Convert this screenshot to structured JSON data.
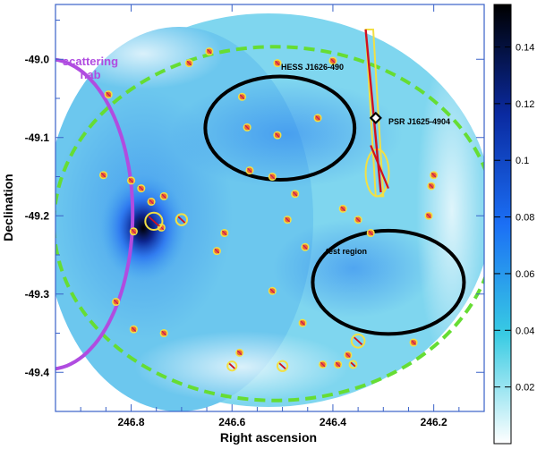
{
  "chart_data": {
    "type": "heatmap",
    "xlabel": "Right ascension",
    "ylabel": "Declination",
    "x_axis": {
      "reversed": true,
      "ticks": [
        246.8,
        246.6,
        246.4,
        246.2
      ],
      "tick_labels": [
        "246.8",
        "246.6",
        "246.4",
        "246.2"
      ]
    },
    "y_axis": {
      "ticks": [
        -49.0,
        -49.1,
        -49.2,
        -49.3,
        -49.4
      ],
      "tick_labels": [
        "-49.0",
        "-49.1",
        "-49.2",
        "-49.3",
        "-49.4"
      ]
    },
    "colorbar": {
      "ticks": [
        0.02,
        0.04,
        0.06,
        0.08,
        0.1,
        0.12,
        0.14
      ],
      "tick_labels": [
        "0.02",
        "0.04",
        "0.06",
        "0.08",
        "0.1",
        "0.12",
        "0.14"
      ],
      "range": [
        0.0,
        0.155
      ],
      "colors": [
        "#ffffff",
        "#38cbe3",
        "#1b6ff5",
        "#0a2aa0",
        "#000000"
      ]
    },
    "colors": {
      "dashed_circle": "#66dd33",
      "regions": "#000000",
      "scattering": "#b04ce0",
      "sources": "#f2e044",
      "source_fill": "#ee6a30",
      "psr_line": "#d01020",
      "psr_marker": "#000000"
    },
    "annotations": {
      "scattering": "scattering\nhab",
      "hess": "HESS J1626-490",
      "psr": "PSR J1625-4904",
      "test": "test region"
    },
    "regions": [
      {
        "name": "HESS J1626-490",
        "ra": 246.505,
        "dec": -49.088,
        "semi_ra": 0.148,
        "semi_dec": 0.066
      },
      {
        "name": "test region",
        "ra": 246.29,
        "dec": -49.285,
        "semi_ra": 0.15,
        "semi_dec": 0.066
      }
    ],
    "field_circle": {
      "ra": 246.515,
      "dec": -49.21,
      "radius_ra": 0.438,
      "radius_dec": 0.226
    },
    "scattering_arc": {
      "ra": 246.962,
      "dec": -49.198,
      "radius_ra": 0.165,
      "radius_dec": 0.198
    },
    "pulsar": {
      "name": "PSR J1625-4904",
      "ra": 246.315,
      "dec": -49.075
    },
    "psr_error_box": {
      "ra": [
        246.335,
        246.32,
        246.3,
        246.315
      ],
      "dec": [
        -48.962,
        -48.962,
        -49.175,
        -49.175
      ]
    },
    "psr_error_ellipse": {
      "ra": 246.312,
      "dec": -49.145,
      "semi_ra": 0.023,
      "semi_dec": 0.03
    },
    "psr_line": {
      "ra": [
        246.335,
        246.305
      ],
      "dec": [
        -48.962,
        -49.17
      ]
    },
    "psr_slant": {
      "ra": [
        246.325,
        246.29
      ],
      "dec": [
        -49.11,
        -49.165
      ]
    },
    "bright_spot": {
      "ra": 246.76,
      "dec": -49.21
    },
    "sources": [
      [
        246.845,
        -49.045
      ],
      [
        246.855,
        -49.148
      ],
      [
        246.8,
        -49.155
      ],
      [
        246.78,
        -49.165
      ],
      [
        246.76,
        -49.182
      ],
      [
        246.735,
        -49.175
      ],
      [
        246.74,
        -49.215
      ],
      [
        246.795,
        -49.22
      ],
      [
        246.83,
        -49.31
      ],
      [
        246.795,
        -49.345
      ],
      [
        246.735,
        -49.35
      ],
      [
        246.63,
        -49.245
      ],
      [
        246.615,
        -49.222
      ],
      [
        246.685,
        -49.005
      ],
      [
        246.645,
        -48.99
      ],
      [
        246.58,
        -49.048
      ],
      [
        246.57,
        -49.087
      ],
      [
        246.51,
        -49.097
      ],
      [
        246.565,
        -49.142
      ],
      [
        246.52,
        -49.15
      ],
      [
        246.51,
        -49.005
      ],
      [
        246.43,
        -49.075
      ],
      [
        246.4,
        -49.002
      ],
      [
        246.475,
        -49.172
      ],
      [
        246.49,
        -49.205
      ],
      [
        246.455,
        -49.24
      ],
      [
        246.38,
        -49.191
      ],
      [
        246.325,
        -49.222
      ],
      [
        246.35,
        -49.205
      ],
      [
        246.2,
        -49.148
      ],
      [
        246.205,
        -49.162
      ],
      [
        246.21,
        -49.2
      ],
      [
        246.52,
        -49.296
      ],
      [
        246.585,
        -49.375
      ],
      [
        246.46,
        -49.337
      ],
      [
        246.42,
        -49.39
      ],
      [
        246.39,
        -49.39
      ],
      [
        246.37,
        -49.378
      ],
      [
        246.24,
        -49.362
      ]
    ],
    "large_sources": [
      {
        "ra": 246.755,
        "dec": -49.207,
        "radius": 0.017
      },
      {
        "ra": 246.7,
        "dec": -49.205,
        "radius": 0.011
      },
      {
        "ra": 246.35,
        "dec": -49.36,
        "radius": 0.013
      },
      {
        "ra": 246.5,
        "dec": -49.392,
        "radius": 0.01
      },
      {
        "ra": 246.6,
        "dec": -49.392,
        "radius": 0.009
      },
      {
        "ra": 246.36,
        "dec": -49.39,
        "radius": 0.007
      }
    ]
  }
}
